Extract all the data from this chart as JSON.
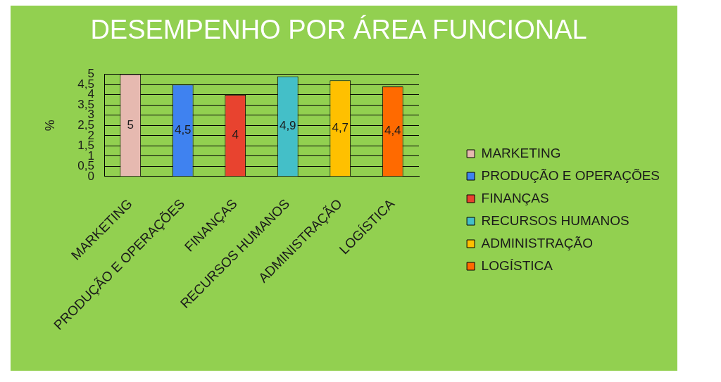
{
  "chart_data": {
    "type": "bar",
    "title": "DESEMPENHO POR ÁREA FUNCIONAL",
    "ylabel": "%",
    "categories": [
      "MARKETING",
      "PRODUÇÃO E OPERAÇÕES",
      "FINANÇAS",
      "RECURSOS HUMANOS",
      "ADMINISTRAÇÃO",
      "LOGÍSTICA"
    ],
    "series": [
      {
        "name": "MARKETING",
        "color": "#e6b9b0",
        "values": [
          5,
          null,
          null,
          null,
          null,
          null
        ],
        "value_labels": [
          "5",
          null,
          null,
          null,
          null,
          null
        ]
      },
      {
        "name": "PRODUÇÃO E OPERAÇÕES",
        "color": "#3f82f0",
        "values": [
          null,
          4.5,
          null,
          null,
          null,
          null
        ],
        "value_labels": [
          null,
          "4,5",
          null,
          null,
          null,
          null
        ]
      },
      {
        "name": "FINANÇAS",
        "color": "#e8432f",
        "values": [
          null,
          null,
          4,
          null,
          null,
          null
        ],
        "value_labels": [
          null,
          null,
          "4",
          null,
          null,
          null
        ]
      },
      {
        "name": "RECURSOS HUMANOS",
        "color": "#44bfc8",
        "values": [
          null,
          null,
          null,
          4.9,
          null,
          null
        ],
        "value_labels": [
          null,
          null,
          null,
          "4,9",
          null,
          null
        ]
      },
      {
        "name": "ADMINISTRAÇÃO",
        "color": "#ffc000",
        "values": [
          null,
          null,
          null,
          null,
          4.7,
          null
        ],
        "value_labels": [
          null,
          null,
          null,
          null,
          "4,7",
          null
        ]
      },
      {
        "name": "LOGÍSTICA",
        "color": "#ff6a00",
        "values": [
          null,
          null,
          null,
          null,
          null,
          4.4
        ],
        "value_labels": [
          null,
          null,
          null,
          null,
          null,
          "4,4"
        ]
      }
    ],
    "ylim": [
      0,
      5
    ],
    "yticks": [
      0,
      {
        "value": 0.5,
        "label": "0,5"
      },
      1,
      {
        "value": 1.5,
        "label": "1,5"
      },
      2,
      {
        "value": 2.5,
        "label": "2,5"
      },
      3,
      {
        "value": 3.5,
        "label": "3,5"
      },
      4,
      {
        "value": 4.5,
        "label": "4,5"
      },
      5
    ],
    "grid": "y",
    "legend": "right"
  }
}
